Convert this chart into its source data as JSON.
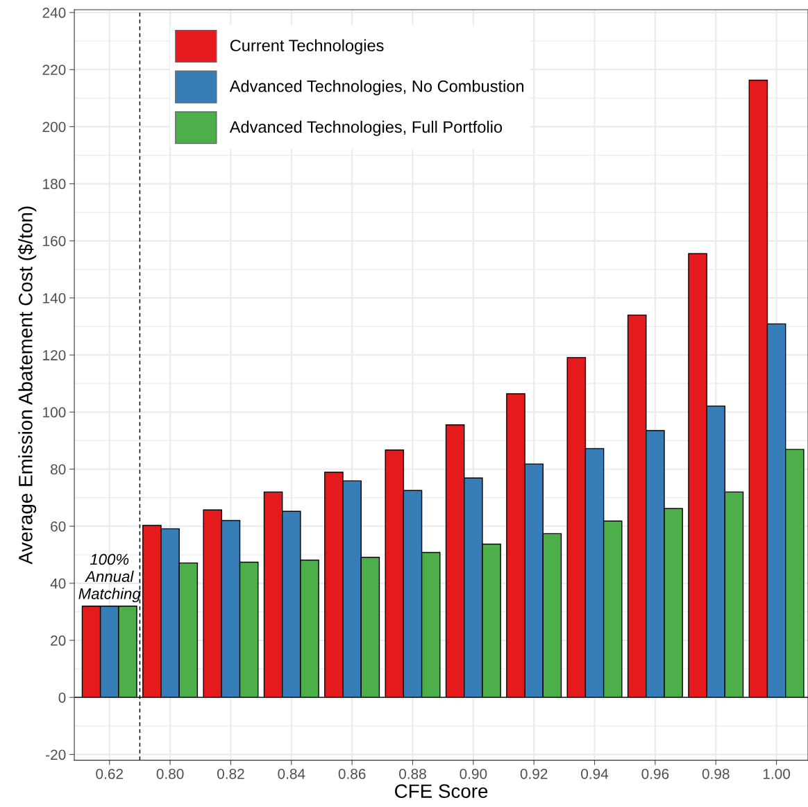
{
  "chart_data": {
    "type": "bar",
    "xlabel": "CFE Score",
    "ylabel": "Average Emission Abatement Cost ($/ton)",
    "categories": [
      "0.62",
      "0.80",
      "0.82",
      "0.84",
      "0.86",
      "0.88",
      "0.90",
      "0.92",
      "0.94",
      "0.96",
      "0.98",
      "1.00"
    ],
    "series": [
      {
        "name": "Current Technologies",
        "color": "#e41a1c",
        "values": [
          32,
          60.3,
          65.7,
          72,
          78.9,
          86.7,
          95.5,
          106.4,
          119.1,
          134,
          155.5,
          216.3
        ]
      },
      {
        "name": "Advanced Technologies, No Combustion",
        "color": "#377eb8",
        "values": [
          32,
          59.1,
          62,
          65.2,
          75.9,
          72.5,
          76.9,
          81.8,
          87.2,
          93.5,
          102.1,
          130.9
        ]
      },
      {
        "name": "Advanced Technologies, Full Portfolio",
        "color": "#4daf4a",
        "values": [
          32,
          47.1,
          47.4,
          48.1,
          49.1,
          50.8,
          53.7,
          57.4,
          61.8,
          66.2,
          72,
          86.9
        ]
      }
    ],
    "ylim": [
      -22,
      241
    ],
    "yticks": [
      -20,
      0,
      20,
      40,
      60,
      80,
      100,
      120,
      140,
      160,
      180,
      200,
      220,
      240
    ],
    "grid": true,
    "legend": "top left",
    "ref_lines": [
      {
        "axis": "y",
        "value": 0,
        "color": "#333333"
      }
    ],
    "annotations": [
      "100%\nAnnual\nMatching"
    ]
  }
}
